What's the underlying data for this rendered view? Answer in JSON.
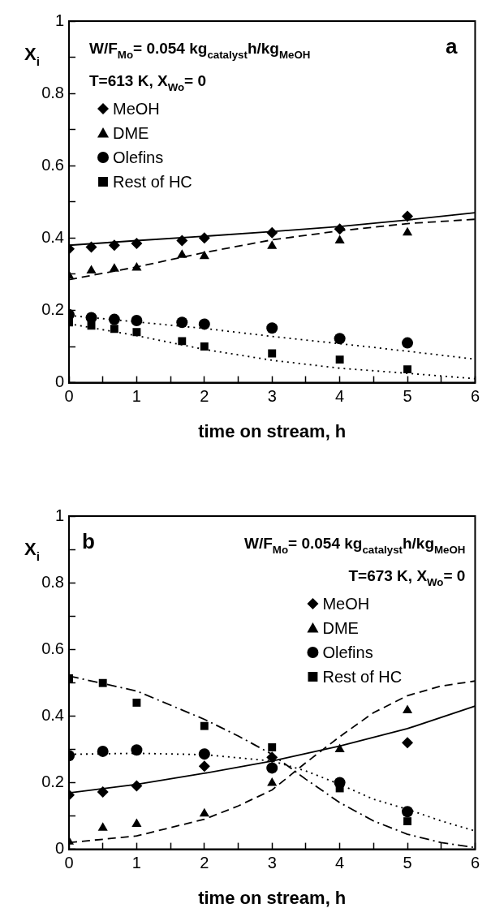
{
  "chart_data": [
    {
      "type": "scatter",
      "title": "a",
      "xlabel": "time on stream, h",
      "ylabel": "X$_{i}$",
      "annotations": [
        "W/F$_{Mo}$= 0.054 kg$_{catalyst}$h/kg$_{MeOH}$",
        "T=613 K, X$_{Wo}$= 0"
      ],
      "xlim": [
        0,
        6
      ],
      "xticks": [
        0,
        {
          "value": 0.5,
          "label": null
        },
        1,
        {
          "value": 1.5,
          "label": null
        },
        2,
        {
          "value": 2.5,
          "label": null
        },
        3,
        {
          "value": 3.5,
          "label": null
        },
        4,
        {
          "value": 4.5,
          "label": null
        },
        5,
        {
          "value": 5.5,
          "label": null
        },
        6
      ],
      "ylim": [
        0,
        1
      ],
      "yticks": [
        0,
        {
          "value": 0.1,
          "label": null
        },
        0.2,
        {
          "value": 0.3,
          "label": null
        },
        0.4,
        {
          "value": 0.5,
          "label": null
        },
        0.6,
        {
          "value": 0.7,
          "label": null
        },
        0.8,
        {
          "value": 0.9,
          "label": null
        },
        1
      ],
      "legend": "top left",
      "series": [
        {
          "name": "MeOH",
          "type": "scatter",
          "marker": "diamond",
          "color": "#000000",
          "x": [
            0,
            0.33,
            0.67,
            1,
            1.67,
            2,
            3,
            4,
            5
          ],
          "values": [
            0.37,
            0.375,
            0.38,
            0.385,
            0.393,
            0.4,
            0.415,
            0.425,
            0.46
          ]
        },
        {
          "name": "DME",
          "type": "scatter",
          "marker": "triangle",
          "color": "#000000",
          "x": [
            0,
            0.33,
            0.67,
            1,
            1.67,
            2,
            3,
            4,
            5
          ],
          "values": [
            0.296,
            0.31,
            0.315,
            0.318,
            0.353,
            0.35,
            0.378,
            0.393,
            0.415
          ]
        },
        {
          "name": "Olefins",
          "type": "scatter",
          "marker": "circle",
          "color": "#000000",
          "x": [
            0,
            0.33,
            0.67,
            1,
            1.67,
            2,
            3,
            4,
            5
          ],
          "values": [
            0.188,
            0.18,
            0.175,
            0.172,
            0.167,
            0.162,
            0.151,
            0.122,
            0.11
          ]
        },
        {
          "name": "Rest of HC",
          "type": "scatter",
          "marker": "square",
          "color": "#000000",
          "x": [
            0,
            0.33,
            0.67,
            1,
            1.67,
            2,
            3,
            4,
            5
          ],
          "values": [
            0.167,
            0.158,
            0.149,
            0.14,
            0.115,
            0.1,
            0.081,
            0.064,
            0.037
          ]
        },
        {
          "type": "line",
          "line_style": "solid",
          "color": "#000000",
          "x": [
            0,
            1,
            2,
            3,
            4,
            5,
            6
          ],
          "values": [
            0.38,
            0.393,
            0.405,
            0.418,
            0.432,
            0.45,
            0.47
          ]
        },
        {
          "type": "line",
          "line_style": "dashed",
          "color": "#000000",
          "x": [
            0,
            1,
            2,
            3,
            4,
            5,
            6
          ],
          "values": [
            0.285,
            0.32,
            0.36,
            0.395,
            0.42,
            0.44,
            0.452
          ]
        },
        {
          "type": "line",
          "line_style": "dotted",
          "color": "#000000",
          "x": [
            0,
            1,
            2,
            3,
            4,
            5,
            6
          ],
          "values": [
            0.186,
            0.168,
            0.15,
            0.128,
            0.108,
            0.087,
            0.065
          ]
        },
        {
          "type": "line",
          "line_style": "dotted",
          "color": "#000000",
          "x": [
            0,
            1,
            2,
            3,
            4,
            5,
            6
          ],
          "values": [
            0.163,
            0.13,
            0.092,
            0.062,
            0.04,
            0.026,
            0.011
          ]
        }
      ]
    },
    {
      "type": "scatter",
      "title": "b",
      "xlabel": "time on stream, h",
      "ylabel": "X$_{i}$",
      "annotations": [
        "W/F$_{Mo}$= 0.054 kg$_{catalyst}$h/kg$_{MeOH}$",
        "T=673 K, X$_{Wo}$= 0"
      ],
      "xlim": [
        0,
        6
      ],
      "xticks": [
        0,
        {
          "value": 0.5,
          "label": null
        },
        1,
        {
          "value": 1.5,
          "label": null
        },
        2,
        {
          "value": 2.5,
          "label": null
        },
        3,
        {
          "value": 3.5,
          "label": null
        },
        4,
        {
          "value": 4.5,
          "label": null
        },
        5,
        {
          "value": 5.5,
          "label": null
        },
        6
      ],
      "ylim": [
        0,
        1
      ],
      "yticks": [
        0,
        {
          "value": 0.1,
          "label": null
        },
        0.2,
        {
          "value": 0.3,
          "label": null
        },
        0.4,
        {
          "value": 0.5,
          "label": null
        },
        0.6,
        {
          "value": 0.7,
          "label": null
        },
        0.8,
        {
          "value": 0.9,
          "label": null
        },
        1
      ],
      "legend": "top right",
      "series": [
        {
          "name": "MeOH",
          "type": "scatter",
          "marker": "diamond",
          "color": "#000000",
          "x": [
            0,
            0.5,
            1,
            2,
            3,
            4,
            5
          ],
          "values": [
            0.163,
            0.172,
            0.19,
            0.249,
            0.276,
            null,
            0.32
          ]
        },
        {
          "name": "DME",
          "type": "scatter",
          "marker": "triangle",
          "color": "#000000",
          "x": [
            0,
            0.5,
            1,
            2,
            3,
            4,
            5
          ],
          "values": [
            0.023,
            0.064,
            0.076,
            0.107,
            0.199,
            0.3,
            0.417
          ]
        },
        {
          "name": "Olefins",
          "type": "scatter",
          "marker": "circle",
          "color": "#000000",
          "x": [
            0,
            0.5,
            1,
            2,
            3,
            4,
            5
          ],
          "values": [
            0.281,
            0.294,
            0.298,
            0.286,
            0.244,
            0.2,
            0.113
          ]
        },
        {
          "name": "Rest of HC",
          "type": "scatter",
          "marker": "square",
          "color": "#000000",
          "x": [
            0,
            0.5,
            1,
            2,
            3,
            4,
            5
          ],
          "values": [
            0.513,
            0.499,
            0.44,
            0.37,
            0.306,
            0.183,
            0.084
          ]
        },
        {
          "type": "line",
          "line_style": "solid",
          "color": "#000000",
          "x": [
            0,
            1,
            2,
            3,
            4,
            5,
            6
          ],
          "values": [
            0.169,
            0.195,
            0.228,
            0.265,
            0.31,
            0.362,
            0.43
          ]
        },
        {
          "type": "line",
          "line_style": "dashed",
          "color": "#000000",
          "x": [
            0,
            1,
            2,
            2.5,
            3,
            3.5,
            4,
            4.5,
            5,
            5.5,
            6
          ],
          "values": [
            0.02,
            0.04,
            0.09,
            0.13,
            0.178,
            0.26,
            0.338,
            0.41,
            0.461,
            0.49,
            0.505
          ]
        },
        {
          "type": "line",
          "line_style": "dotted",
          "color": "#000000",
          "x": [
            0,
            1,
            2,
            3,
            3.5,
            4,
            4.5,
            5,
            5.5,
            6
          ],
          "values": [
            0.285,
            0.288,
            0.284,
            0.265,
            0.235,
            0.195,
            0.15,
            0.12,
            0.085,
            0.055
          ]
        },
        {
          "type": "line",
          "line_style": "dashdot",
          "color": "#000000",
          "x": [
            0,
            1,
            2,
            2.5,
            3,
            3.5,
            4,
            4.5,
            5,
            5.5,
            6
          ],
          "values": [
            0.52,
            0.475,
            0.39,
            0.34,
            0.285,
            0.21,
            0.14,
            0.085,
            0.045,
            0.02,
            0.005
          ]
        }
      ]
    }
  ]
}
